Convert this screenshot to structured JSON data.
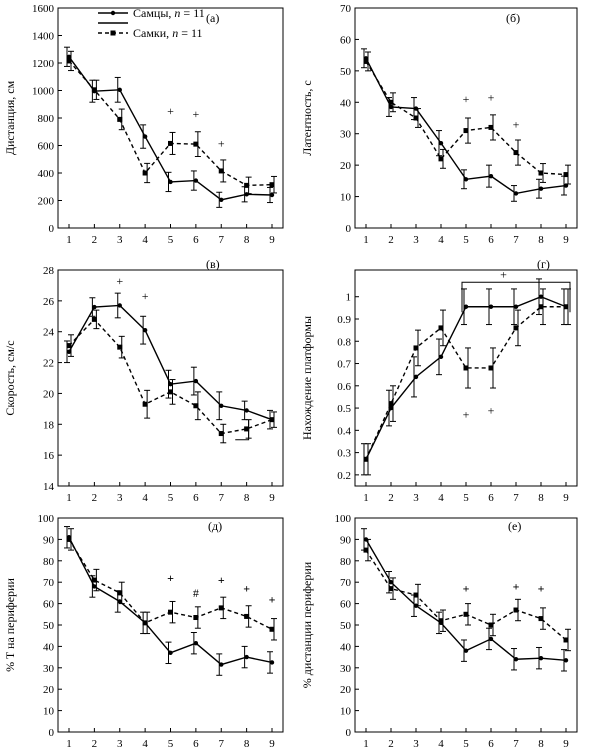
{
  "legend": {
    "items": [
      {
        "label": "Самцы, ",
        "n_label": "n",
        "n_value": " = 11",
        "style": "solid"
      },
      {
        "label": "Самки, ",
        "n_label": "n",
        "n_value": " = 11",
        "style": "dashed"
      }
    ]
  },
  "chart_data": [
    {
      "type": "line",
      "panel_label": "(а)",
      "ylabel": "Дистанция, см",
      "x": [
        1,
        2,
        3,
        4,
        5,
        6,
        7,
        8,
        9
      ],
      "ylim": [
        0,
        1600
      ],
      "yticks": [
        0,
        200,
        400,
        600,
        800,
        1000,
        1200,
        1400,
        1600
      ],
      "series": [
        {
          "name": "Самцы, n = 11",
          "style": "solid",
          "values": [
            1245,
            995,
            1005,
            665,
            335,
            345,
            205,
            245,
            240
          ],
          "errors": [
            70,
            80,
            90,
            85,
            70,
            70,
            55,
            55,
            55
          ]
        },
        {
          "name": "Самки, n = 11",
          "style": "dashed",
          "values": [
            1215,
            1005,
            790,
            400,
            615,
            610,
            415,
            310,
            315
          ],
          "errors": [
            70,
            70,
            75,
            70,
            80,
            90,
            80,
            60,
            60
          ]
        }
      ],
      "significance": [
        {
          "x": 5,
          "y": 850,
          "label": "+"
        },
        {
          "x": 6,
          "y": 830,
          "label": "+"
        },
        {
          "x": 7,
          "y": 615,
          "label": "+"
        }
      ]
    },
    {
      "type": "line",
      "panel_label": "(б)",
      "ylabel": "Латентность, с",
      "x": [
        1,
        2,
        3,
        4,
        5,
        6,
        7,
        8,
        9
      ],
      "ylim": [
        0,
        70
      ],
      "yticks": [
        0,
        10,
        20,
        30,
        40,
        50,
        60,
        70
      ],
      "series": [
        {
          "name": "Самцы, n = 11",
          "style": "solid",
          "values": [
            54,
            38.5,
            38,
            27,
            15.5,
            16.5,
            11,
            12.5,
            13.5
          ],
          "errors": [
            3,
            3,
            3.5,
            4,
            3,
            3.5,
            2.5,
            3,
            3
          ]
        },
        {
          "name": "Самки, n = 11",
          "style": "dashed",
          "values": [
            53,
            40,
            35,
            22,
            31,
            32,
            24,
            17.5,
            17
          ],
          "errors": [
            3,
            3,
            3,
            3,
            4,
            4,
            4,
            3,
            3
          ]
        }
      ],
      "significance": [
        {
          "x": 5,
          "y": 41,
          "label": "+"
        },
        {
          "x": 6,
          "y": 41.5,
          "label": "+"
        },
        {
          "x": 7,
          "y": 33,
          "label": "+"
        }
      ]
    },
    {
      "type": "line",
      "panel_label": "(в)",
      "ylabel": "Скорость, см/с",
      "x": [
        1,
        2,
        3,
        4,
        5,
        6,
        7,
        8,
        9
      ],
      "ylim": [
        14,
        28
      ],
      "yticks": [
        14,
        16,
        18,
        20,
        22,
        24,
        26,
        28
      ],
      "series": [
        {
          "name": "Самцы, n = 11",
          "style": "solid",
          "values": [
            22.7,
            25.6,
            25.7,
            24.1,
            20.6,
            20.8,
            19.2,
            18.9,
            18.3
          ],
          "errors": [
            0.7,
            0.6,
            0.8,
            0.9,
            0.9,
            0.9,
            0.9,
            0.6,
            0.6
          ]
        },
        {
          "name": "Самки, n = 11",
          "style": "dashed",
          "values": [
            23.1,
            24.8,
            23.0,
            19.3,
            20.1,
            19.2,
            17.4,
            17.7,
            18.3
          ],
          "errors": [
            0.7,
            0.6,
            0.7,
            0.9,
            0.8,
            0.9,
            0.6,
            0.6,
            0.5
          ]
        }
      ],
      "significance": [
        {
          "x": 3,
          "y": 27.3,
          "label": "+"
        },
        {
          "x": 4,
          "y": 26.3,
          "label": "+"
        }
      ]
    },
    {
      "type": "line",
      "panel_label": "(г)",
      "ylabel": "Нахождение платформы",
      "x": [
        1,
        2,
        3,
        4,
        5,
        6,
        7,
        8,
        9
      ],
      "ylim": [
        0.15,
        1.12
      ],
      "yticks": [
        0.2,
        0.3,
        0.4,
        0.5,
        0.6,
        0.7,
        0.8,
        0.9,
        1.0
      ],
      "series": [
        {
          "name": "Самцы, n = 11",
          "style": "solid",
          "values": [
            0.27,
            0.5,
            0.64,
            0.73,
            0.955,
            0.955,
            0.955,
            1.0,
            0.955
          ],
          "errors": [
            0.07,
            0.08,
            0.09,
            0.08,
            0.08,
            0.08,
            0.08,
            0.08,
            0.08
          ]
        },
        {
          "name": "Самки, n = 11",
          "style": "dashed",
          "values": [
            0.27,
            0.52,
            0.77,
            0.86,
            0.68,
            0.68,
            0.86,
            0.955,
            0.955
          ],
          "errors": [
            0.07,
            0.08,
            0.08,
            0.08,
            0.09,
            0.09,
            0.08,
            0.08,
            0.08
          ]
        }
      ],
      "significance": [
        {
          "x": 5,
          "y": 0.47,
          "label": "+"
        },
        {
          "x": 6,
          "y": 0.49,
          "label": "+"
        },
        {
          "x": 6.5,
          "y": 1.1,
          "label": "+"
        }
      ]
    },
    {
      "type": "line",
      "panel_label": "(д)",
      "ylabel": "% T на периферии",
      "x": [
        1,
        2,
        3,
        4,
        5,
        6,
        7,
        8,
        9
      ],
      "ylim": [
        0,
        100
      ],
      "yticks": [
        0,
        10,
        20,
        30,
        40,
        50,
        60,
        70,
        80,
        90,
        100
      ],
      "series": [
        {
          "name": "Самцы, n = 11",
          "style": "solid",
          "values": [
            91,
            68,
            61,
            51,
            37,
            41.5,
            31.5,
            35,
            32.5
          ],
          "errors": [
            5,
            5,
            5,
            5,
            5,
            5,
            5,
            5,
            5
          ]
        },
        {
          "name": "Самки, n = 11",
          "style": "dashed",
          "values": [
            90,
            71,
            65,
            51,
            56,
            53.5,
            58,
            54,
            48
          ],
          "errors": [
            5,
            5,
            5,
            5,
            5,
            5,
            5,
            5,
            5
          ]
        }
      ],
      "significance": [
        {
          "x": 5,
          "y": 72,
          "label": "+"
        },
        {
          "x": 6,
          "y": 65,
          "label": "#"
        },
        {
          "x": 7,
          "y": 71,
          "label": "+"
        },
        {
          "x": 8,
          "y": 67,
          "label": "+"
        },
        {
          "x": 9,
          "y": 62,
          "label": "+"
        }
      ]
    },
    {
      "type": "line",
      "panel_label": "(е)",
      "ylabel": "% дистанции периферии",
      "x": [
        1,
        2,
        3,
        4,
        5,
        6,
        7,
        8,
        9
      ],
      "ylim": [
        0,
        100
      ],
      "yticks": [
        0,
        10,
        20,
        30,
        40,
        50,
        60,
        70,
        80,
        90,
        100
      ],
      "series": [
        {
          "name": "Самцы, n = 11",
          "style": "solid",
          "values": [
            90,
            70,
            59,
            51,
            38,
            43.5,
            34,
            34.5,
            33.5
          ],
          "errors": [
            5,
            5,
            5,
            5,
            5,
            5,
            5,
            5,
            5
          ]
        },
        {
          "name": "Самки, n = 11",
          "style": "dashed",
          "values": [
            85,
            67,
            64,
            52,
            55,
            50,
            57,
            53,
            43
          ],
          "errors": [
            5,
            5,
            5,
            5,
            5,
            5,
            5,
            5,
            5
          ]
        }
      ],
      "significance": [
        {
          "x": 5,
          "y": 67,
          "label": "+"
        },
        {
          "x": 7,
          "y": 68,
          "label": "+"
        },
        {
          "x": 8,
          "y": 67,
          "label": "+"
        }
      ]
    }
  ]
}
